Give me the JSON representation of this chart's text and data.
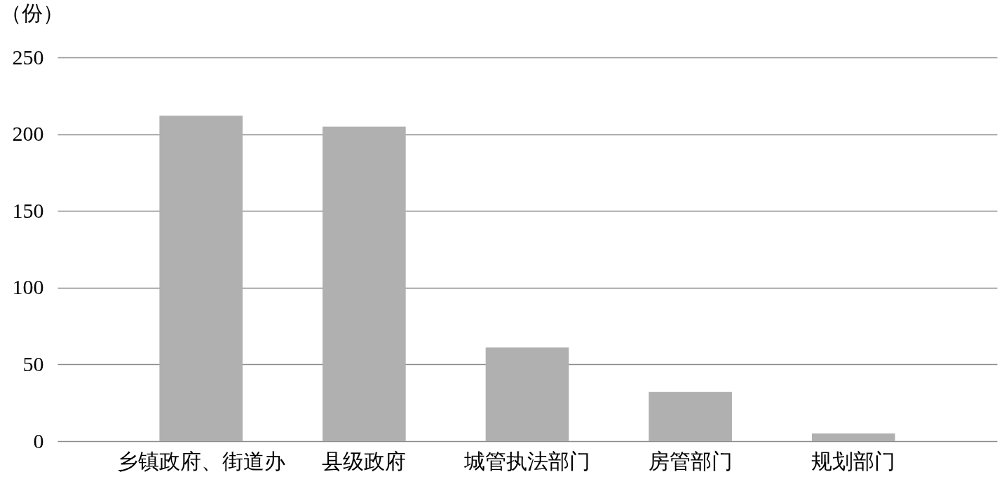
{
  "chart_data": {
    "type": "bar",
    "ylabel": "（份）",
    "categories": [
      "乡镇政府、街道办",
      "县级政府",
      "城管执法部门",
      "房管部门",
      "规划部门"
    ],
    "values": [
      212,
      205,
      61,
      32,
      5
    ],
    "color": "#b0b0b0",
    "ylim": [
      0,
      250
    ],
    "yticks": [
      0,
      50,
      100,
      150,
      200,
      250
    ],
    "grid": "y"
  }
}
